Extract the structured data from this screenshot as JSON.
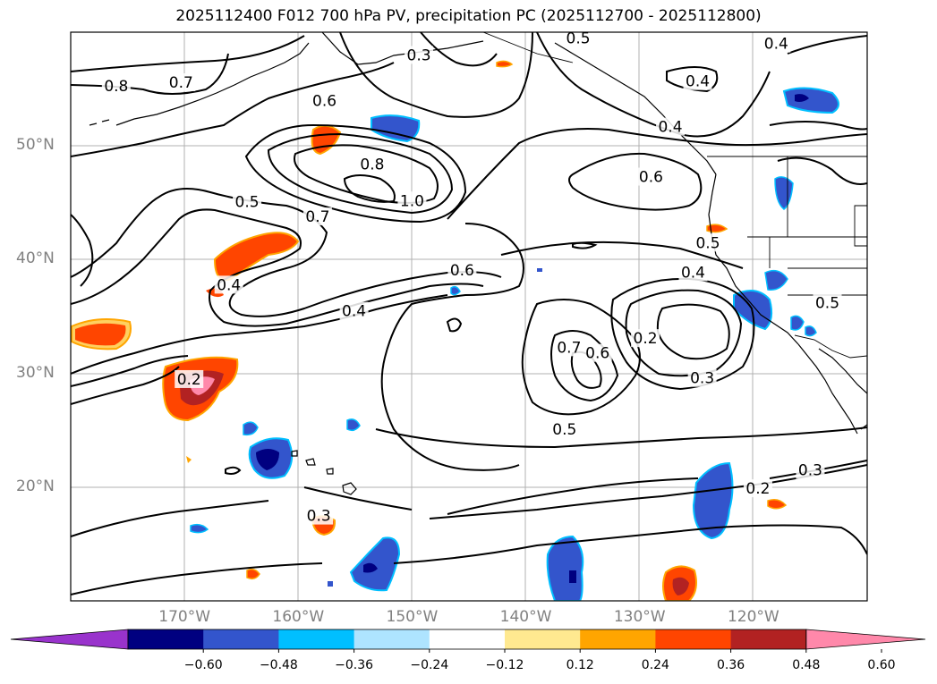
{
  "title": "2025112400 F012 700 hPa PV, precipitation PC (2025112700 - 2025112800)",
  "map": {
    "lon_range": [
      -180,
      -110
    ],
    "lat_range": [
      10,
      60
    ],
    "lat_labels": [
      {
        "text": "50°N",
        "lat": 50
      },
      {
        "text": "40°N",
        "lat": 40
      },
      {
        "text": "30°N",
        "lat": 30
      },
      {
        "text": "20°N",
        "lat": 20
      }
    ],
    "lon_labels": [
      {
        "text": "170°W",
        "lon": -170
      },
      {
        "text": "160°W",
        "lon": -160
      },
      {
        "text": "150°W",
        "lon": -150
      },
      {
        "text": "140°W",
        "lon": -140
      },
      {
        "text": "130°W",
        "lon": -130
      },
      {
        "text": "120°W",
        "lon": -120
      }
    ],
    "contour_labels": [
      {
        "text": "0.8",
        "lon": -176,
        "lat": 55.3
      },
      {
        "text": "0.7",
        "lon": -170.3,
        "lat": 55.6
      },
      {
        "text": "0.6",
        "lon": -157.7,
        "lat": 54
      },
      {
        "text": "0.3",
        "lon": -149.4,
        "lat": 58
      },
      {
        "text": "0.8",
        "lon": -153.5,
        "lat": 48.4
      },
      {
        "text": "0.7",
        "lon": -158.3,
        "lat": 43.8
      },
      {
        "text": "0.5",
        "lon": -164.5,
        "lat": 45.1
      },
      {
        "text": "1.0",
        "lon": -150,
        "lat": 45.2
      },
      {
        "text": "0.6",
        "lon": -145.6,
        "lat": 39.1
      },
      {
        "text": "0.4",
        "lon": -166.1,
        "lat": 37.8
      },
      {
        "text": "0.4",
        "lon": -155.1,
        "lat": 35.5
      },
      {
        "text": "0.3",
        "lon": -158.2,
        "lat": 17.5
      },
      {
        "text": "0.2",
        "lon": -169.6,
        "lat": 29.5
      },
      {
        "text": "0.4",
        "lon": -127.3,
        "lat": 51.7
      },
      {
        "text": "0.6",
        "lon": -129,
        "lat": 47.3
      },
      {
        "text": "0.5",
        "lon": -124,
        "lat": 41.5
      },
      {
        "text": "0.4",
        "lon": -125.3,
        "lat": 38.9
      },
      {
        "text": "0.7",
        "lon": -136.2,
        "lat": 32.3
      },
      {
        "text": "0.6",
        "lon": -133.7,
        "lat": 31.8
      },
      {
        "text": "0.2",
        "lon": -129.5,
        "lat": 33.1
      },
      {
        "text": "0.3",
        "lon": -124.5,
        "lat": 29.6
      },
      {
        "text": "0.5",
        "lon": -136.6,
        "lat": 25.1
      },
      {
        "text": "0.2",
        "lon": -119.6,
        "lat": 19.9
      },
      {
        "text": "0.3",
        "lon": -115,
        "lat": 21.5
      },
      {
        "text": "0.5",
        "lon": -113.5,
        "lat": 36.2
      },
      {
        "text": "0.4",
        "lon": -124.9,
        "lat": 55.7
      },
      {
        "text": "0.4",
        "lon": -118,
        "lat": 59
      },
      {
        "text": "0.5",
        "lon": -135.4,
        "lat": 59.5
      }
    ]
  },
  "colorbar": {
    "ticks": [
      "−0.60",
      "−0.48",
      "−0.36",
      "−0.24",
      "−0.12",
      "0.12",
      "0.24",
      "0.36",
      "0.48",
      "0.60"
    ],
    "colors": [
      "#9933cc",
      "#000080",
      "#3355cc",
      "#00bfff",
      "#aee4ff",
      "#ffffff",
      "#ffe990",
      "#ffa500",
      "#ff4500",
      "#b22222",
      "#ff88aa"
    ]
  }
}
